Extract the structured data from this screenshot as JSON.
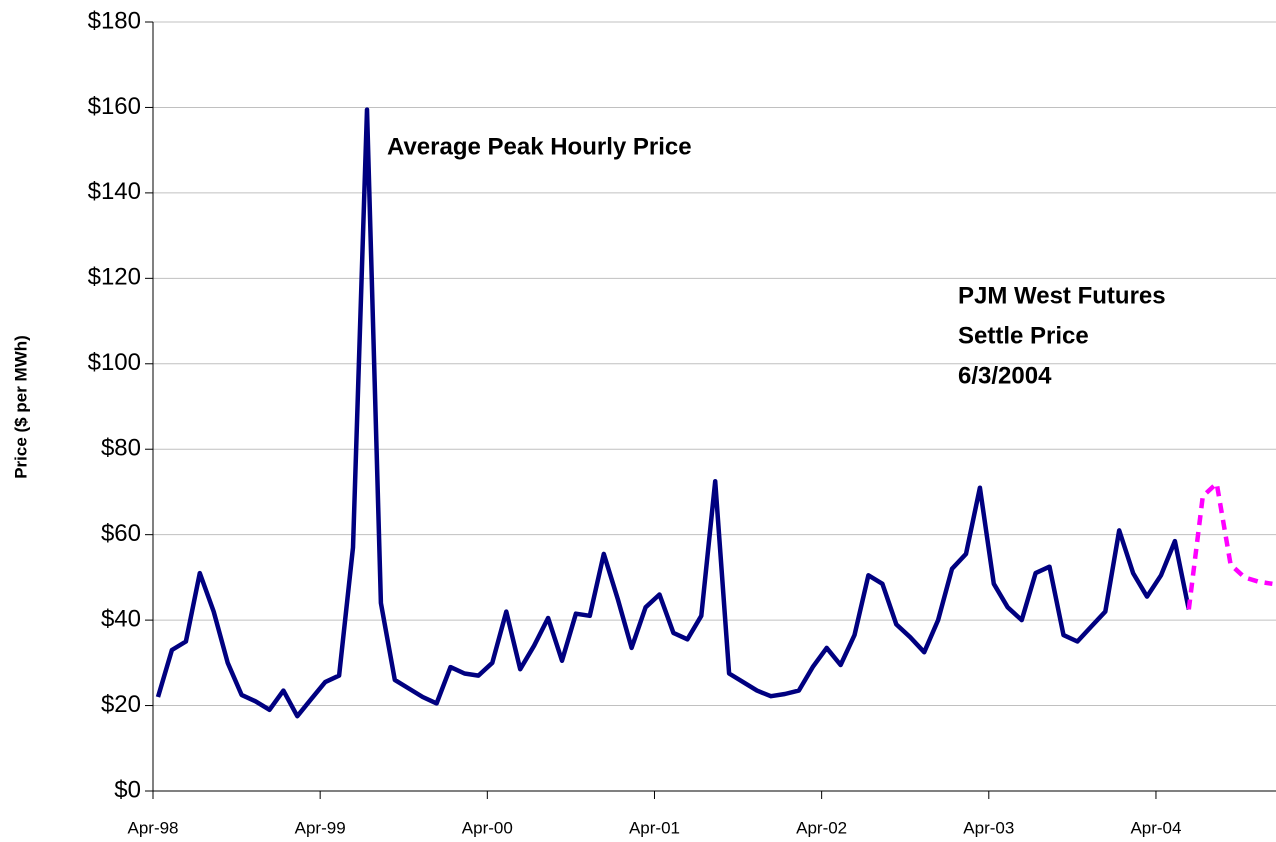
{
  "chart_data": {
    "type": "line",
    "categories": [
      "Apr-98",
      null,
      null,
      null,
      null,
      null,
      null,
      null,
      null,
      null,
      null,
      null,
      "Apr-99",
      null,
      null,
      null,
      null,
      null,
      null,
      null,
      null,
      null,
      null,
      null,
      "Apr-00",
      null,
      null,
      null,
      null,
      null,
      null,
      null,
      null,
      null,
      null,
      null,
      "Apr-01",
      null,
      null,
      null,
      null,
      null,
      null,
      null,
      null,
      null,
      null,
      null,
      "Apr-02",
      null,
      null,
      null,
      null,
      null,
      null,
      null,
      null,
      null,
      null,
      null,
      "Apr-03",
      null,
      null,
      null,
      null,
      null,
      null,
      null,
      null,
      null,
      null,
      null,
      "Apr-04",
      null,
      null,
      null,
      null,
      null,
      null,
      null,
      null
    ],
    "series": [
      {
        "name": "Average Peak Hourly Price",
        "color": "#000080",
        "style": "solid",
        "values": [
          22,
          33,
          35,
          51,
          42,
          30,
          22.5,
          21,
          19,
          23.5,
          17.5,
          21.5,
          25.5,
          27,
          57,
          159.5,
          44,
          26,
          24,
          22,
          20.5,
          29,
          27.5,
          27,
          30,
          42,
          28.5,
          34,
          40.5,
          30.5,
          41.5,
          41,
          55.5,
          45,
          33.5,
          43,
          46,
          37,
          35.5,
          41,
          72.5,
          27.5,
          25.5,
          23.5,
          22.2,
          22.7,
          23.5,
          29,
          33.5,
          29.5,
          36.5,
          50.5,
          48.5,
          39,
          36,
          32.5,
          40,
          52,
          55.5,
          71,
          48.5,
          43,
          40,
          51,
          52.5,
          36.5,
          35,
          38.5,
          42,
          61,
          51,
          45.5,
          50.5,
          58.5,
          42.5,
          null,
          null,
          null,
          null,
          null,
          null
        ]
      },
      {
        "color": "#ff00ff",
        "style": "dashed",
        "values": [
          null,
          null,
          null,
          null,
          null,
          null,
          null,
          null,
          null,
          null,
          null,
          null,
          null,
          null,
          null,
          null,
          null,
          null,
          null,
          null,
          null,
          null,
          null,
          null,
          null,
          null,
          null,
          null,
          null,
          null,
          null,
          null,
          null,
          null,
          null,
          null,
          null,
          null,
          null,
          null,
          null,
          null,
          null,
          null,
          null,
          null,
          null,
          null,
          null,
          null,
          null,
          null,
          null,
          null,
          null,
          null,
          null,
          null,
          null,
          null,
          null,
          null,
          null,
          null,
          null,
          null,
          null,
          null,
          null,
          null,
          null,
          null,
          null,
          null,
          42.5,
          69,
          72,
          53,
          50,
          49,
          48.5
        ]
      }
    ],
    "annotation": [
      "PJM West Futures",
      "Settle Price",
      "6/3/2004"
    ],
    "ylabel": "Price ($ per MWh)",
    "ylim": [
      0,
      180
    ],
    "yticks": [
      {
        "value": 0,
        "label": "$0"
      },
      {
        "value": 20,
        "label": "$20"
      },
      {
        "value": 40,
        "label": "$40"
      },
      {
        "value": 60,
        "label": "$60"
      },
      {
        "value": 80,
        "label": "$80"
      },
      {
        "value": 100,
        "label": "$100"
      },
      {
        "value": 120,
        "label": "$120"
      },
      {
        "value": 140,
        "label": "$140"
      },
      {
        "value": 160,
        "label": "$160"
      },
      {
        "value": 180,
        "label": "$180"
      }
    ],
    "grid": true
  }
}
